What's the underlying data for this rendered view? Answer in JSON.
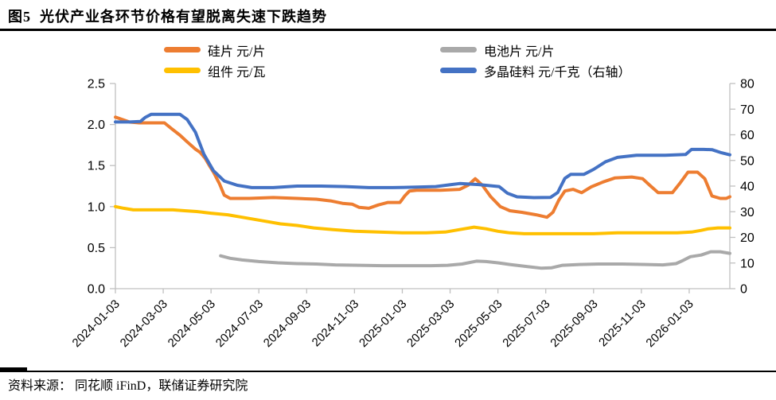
{
  "title": {
    "text": "图5  光伏产业各环节价格有望脱离失速下跌趋势"
  },
  "source": {
    "text": "资料来源： 同花顺 iFinD，联储证券研究院"
  },
  "colors": {
    "wafer_orange": "#ED7D31",
    "module_yellow": "#FFC000",
    "cell_gray": "#A9A9A9",
    "poly_blue": "#4472C4",
    "axis_gray": "#C0C0C0",
    "text_black": "#000000"
  },
  "chart_data": {
    "type": "line",
    "title": "光伏产业各环节价格有望脱离失速下跌趋势",
    "x_axis": {
      "start_label": "2024-01-03",
      "end_of_data": "2026-02",
      "months_max": 25.7,
      "months_per_tick": 2,
      "tick_labels": [
        "2024-01-03",
        "2024-03-03",
        "2024-05-03",
        "2024-07-03",
        "2024-09-03",
        "2024-11-03",
        "2025-01-03",
        "2025-03-03",
        "2025-05-03",
        "2025-07-03",
        "2025-09-03",
        "2025-11-03",
        "2026-01-03"
      ]
    },
    "y_axis_left": {
      "min": 0,
      "max": 2.5,
      "tick_labels": [
        "0.0",
        "0.5",
        "1.0",
        "1.5",
        "2.0",
        "2.5"
      ]
    },
    "y_axis_right": {
      "min": 0,
      "max": 80,
      "tick_labels": [
        "0",
        "10",
        "20",
        "30",
        "40",
        "50",
        "60",
        "70",
        "80"
      ]
    },
    "legend_position": "top",
    "grid": false,
    "series": [
      {
        "key": "silicon-wafer",
        "name": "硅片 元/片",
        "axis": "left",
        "color": "#ED7D31",
        "legend_column": 0,
        "points": [
          [
            0,
            2.09
          ],
          [
            0.3,
            2.06
          ],
          [
            0.6,
            2.03
          ],
          [
            1.0,
            2.02
          ],
          [
            1.6,
            2.02
          ],
          [
            2.05,
            2.02
          ],
          [
            2.35,
            1.95
          ],
          [
            2.7,
            1.87
          ],
          [
            3.0,
            1.79
          ],
          [
            3.35,
            1.7
          ],
          [
            3.55,
            1.66
          ],
          [
            3.75,
            1.59
          ],
          [
            3.95,
            1.49
          ],
          [
            4.1,
            1.42
          ],
          [
            4.35,
            1.28
          ],
          [
            4.55,
            1.14
          ],
          [
            4.8,
            1.1
          ],
          [
            5.6,
            1.1
          ],
          [
            6.6,
            1.11
          ],
          [
            7.6,
            1.1
          ],
          [
            8.4,
            1.09
          ],
          [
            9.0,
            1.07
          ],
          [
            9.5,
            1.04
          ],
          [
            9.9,
            1.03
          ],
          [
            10.2,
            0.99
          ],
          [
            10.6,
            0.98
          ],
          [
            11.0,
            1.02
          ],
          [
            11.4,
            1.05
          ],
          [
            11.9,
            1.05
          ],
          [
            12.1,
            1.13
          ],
          [
            12.3,
            1.19
          ],
          [
            12.6,
            1.2
          ],
          [
            13.6,
            1.2
          ],
          [
            14.4,
            1.21
          ],
          [
            14.75,
            1.26
          ],
          [
            15.05,
            1.34
          ],
          [
            15.35,
            1.26
          ],
          [
            15.7,
            1.12
          ],
          [
            16.1,
            1.0
          ],
          [
            16.5,
            0.95
          ],
          [
            17.0,
            0.93
          ],
          [
            17.6,
            0.9
          ],
          [
            18.05,
            0.87
          ],
          [
            18.3,
            0.93
          ],
          [
            18.55,
            1.08
          ],
          [
            18.8,
            1.19
          ],
          [
            19.15,
            1.21
          ],
          [
            19.5,
            1.17
          ],
          [
            19.9,
            1.24
          ],
          [
            20.4,
            1.3
          ],
          [
            20.9,
            1.35
          ],
          [
            21.6,
            1.36
          ],
          [
            22.05,
            1.34
          ],
          [
            22.35,
            1.26
          ],
          [
            22.7,
            1.17
          ],
          [
            23.3,
            1.17
          ],
          [
            23.6,
            1.28
          ],
          [
            23.95,
            1.42
          ],
          [
            24.35,
            1.42
          ],
          [
            24.65,
            1.34
          ],
          [
            24.95,
            1.13
          ],
          [
            25.3,
            1.1
          ],
          [
            25.55,
            1.1
          ],
          [
            25.7,
            1.12
          ]
        ]
      },
      {
        "key": "battery-cell",
        "name": "电池片 元/片",
        "axis": "left",
        "color": "#A9A9A9",
        "legend_column": 1,
        "points": [
          [
            4.4,
            0.4
          ],
          [
            4.8,
            0.37
          ],
          [
            5.3,
            0.35
          ],
          [
            6.0,
            0.33
          ],
          [
            6.8,
            0.315
          ],
          [
            7.6,
            0.305
          ],
          [
            8.4,
            0.3
          ],
          [
            9.2,
            0.29
          ],
          [
            10.2,
            0.285
          ],
          [
            11.2,
            0.28
          ],
          [
            12.2,
            0.28
          ],
          [
            13.2,
            0.28
          ],
          [
            13.9,
            0.285
          ],
          [
            14.5,
            0.3
          ],
          [
            15.1,
            0.335
          ],
          [
            15.5,
            0.33
          ],
          [
            16.0,
            0.315
          ],
          [
            16.5,
            0.295
          ],
          [
            17.2,
            0.27
          ],
          [
            17.8,
            0.25
          ],
          [
            18.25,
            0.255
          ],
          [
            18.7,
            0.285
          ],
          [
            19.4,
            0.295
          ],
          [
            20.2,
            0.3
          ],
          [
            21.2,
            0.3
          ],
          [
            22.2,
            0.295
          ],
          [
            22.9,
            0.29
          ],
          [
            23.45,
            0.305
          ],
          [
            23.75,
            0.345
          ],
          [
            24.05,
            0.39
          ],
          [
            24.5,
            0.41
          ],
          [
            24.9,
            0.45
          ],
          [
            25.3,
            0.45
          ],
          [
            25.7,
            0.43
          ]
        ]
      },
      {
        "key": "module",
        "name": "组件 元/瓦",
        "axis": "left",
        "color": "#FFC000",
        "legend_column": 0,
        "points": [
          [
            0,
            1.0
          ],
          [
            0.35,
            0.98
          ],
          [
            0.75,
            0.96
          ],
          [
            1.6,
            0.96
          ],
          [
            2.4,
            0.96
          ],
          [
            2.9,
            0.95
          ],
          [
            3.4,
            0.94
          ],
          [
            4.0,
            0.92
          ],
          [
            4.7,
            0.9
          ],
          [
            5.3,
            0.87
          ],
          [
            6.1,
            0.83
          ],
          [
            6.9,
            0.79
          ],
          [
            7.6,
            0.77
          ],
          [
            8.3,
            0.74
          ],
          [
            9.1,
            0.72
          ],
          [
            10.0,
            0.7
          ],
          [
            11.0,
            0.69
          ],
          [
            12.0,
            0.68
          ],
          [
            13.0,
            0.68
          ],
          [
            13.8,
            0.69
          ],
          [
            14.4,
            0.72
          ],
          [
            15.0,
            0.75
          ],
          [
            15.5,
            0.73
          ],
          [
            16.0,
            0.7
          ],
          [
            16.5,
            0.68
          ],
          [
            17.1,
            0.67
          ],
          [
            18.0,
            0.67
          ],
          [
            19.0,
            0.67
          ],
          [
            20.0,
            0.67
          ],
          [
            21.0,
            0.68
          ],
          [
            22.5,
            0.68
          ],
          [
            23.5,
            0.68
          ],
          [
            24.1,
            0.69
          ],
          [
            24.5,
            0.71
          ],
          [
            24.8,
            0.73
          ],
          [
            25.2,
            0.74
          ],
          [
            25.7,
            0.74
          ]
        ]
      },
      {
        "key": "polysilicon",
        "name": "多晶硅料 元/千克（右轴）",
        "axis": "right",
        "color": "#4472C4",
        "legend_column": 1,
        "points": [
          [
            0,
            65
          ],
          [
            0.6,
            65
          ],
          [
            1.05,
            65.2
          ],
          [
            1.25,
            66.8
          ],
          [
            1.5,
            68
          ],
          [
            2.2,
            68
          ],
          [
            2.7,
            68
          ],
          [
            3.0,
            66
          ],
          [
            3.35,
            61
          ],
          [
            3.7,
            52.5
          ],
          [
            4.1,
            46
          ],
          [
            4.55,
            42
          ],
          [
            5.1,
            40.3
          ],
          [
            5.7,
            39.4
          ],
          [
            6.6,
            39.4
          ],
          [
            7.6,
            40
          ],
          [
            8.6,
            40
          ],
          [
            9.6,
            39.8
          ],
          [
            10.6,
            39.4
          ],
          [
            11.6,
            39.4
          ],
          [
            12.6,
            39.6
          ],
          [
            13.4,
            39.8
          ],
          [
            14.05,
            40.6
          ],
          [
            14.4,
            41
          ],
          [
            15.2,
            40.6
          ],
          [
            16.05,
            39.8
          ],
          [
            16.4,
            37.2
          ],
          [
            16.8,
            35.8
          ],
          [
            17.5,
            35.5
          ],
          [
            18.2,
            35.6
          ],
          [
            18.5,
            37.5
          ],
          [
            18.8,
            43
          ],
          [
            19.05,
            44.6
          ],
          [
            19.6,
            44.6
          ],
          [
            20.0,
            46.5
          ],
          [
            20.5,
            49.5
          ],
          [
            21.0,
            51.2
          ],
          [
            21.8,
            52
          ],
          [
            23.0,
            52
          ],
          [
            23.85,
            52.3
          ],
          [
            24.1,
            54.3
          ],
          [
            24.6,
            54.3
          ],
          [
            24.95,
            54.2
          ],
          [
            25.35,
            53
          ],
          [
            25.7,
            52.2
          ]
        ]
      }
    ]
  }
}
